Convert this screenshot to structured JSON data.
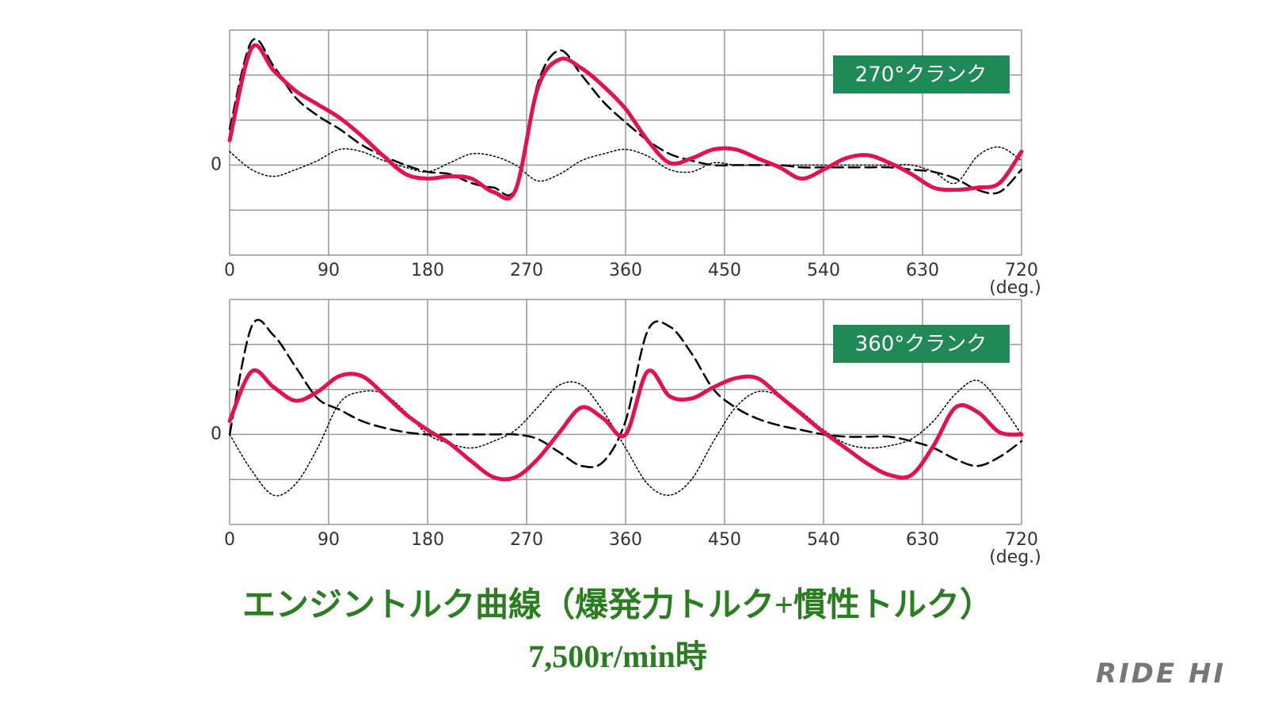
{
  "chart_data": [
    {
      "type": "line",
      "annotation": "270°クランク",
      "x_unit": "(deg.)",
      "xlim": [
        0,
        720
      ],
      "xticks": [
        0,
        90,
        180,
        270,
        360,
        450,
        540,
        630,
        720
      ],
      "ylim": [
        -2,
        3
      ],
      "yticks": [
        0
      ],
      "ygrid": [
        -2,
        -1,
        0,
        1,
        2,
        3
      ],
      "grid": true,
      "x": [
        0,
        20,
        40,
        60,
        80,
        100,
        120,
        140,
        160,
        180,
        200,
        220,
        240,
        260,
        280,
        300,
        320,
        340,
        360,
        380,
        400,
        420,
        440,
        460,
        480,
        500,
        520,
        540,
        560,
        580,
        600,
        620,
        640,
        660,
        680,
        700,
        720
      ],
      "series": [
        {
          "color": "#000000",
          "style": "dashed",
          "line_width": 2.5,
          "values": [
            0.8,
            2.75,
            2.2,
            1.5,
            1.1,
            0.8,
            0.45,
            0.2,
            0.0,
            -0.15,
            -0.2,
            -0.4,
            -0.5,
            -0.5,
            1.8,
            2.55,
            2.0,
            1.4,
            0.95,
            0.55,
            0.25,
            0.1,
            0.0,
            0.0,
            0.0,
            0.0,
            -0.05,
            -0.05,
            -0.05,
            -0.05,
            -0.05,
            -0.1,
            -0.15,
            -0.3,
            -0.55,
            -0.6,
            -0.1
          ]
        },
        {
          "color": "#000000",
          "style": "dotted",
          "line_width": 1.5,
          "values": [
            0.3,
            -0.1,
            -0.25,
            -0.1,
            0.1,
            0.35,
            0.3,
            0.1,
            -0.05,
            -0.15,
            0.05,
            0.25,
            0.2,
            0.0,
            -0.35,
            -0.2,
            0.1,
            0.25,
            0.35,
            0.2,
            -0.1,
            -0.15,
            0.05,
            0.0,
            0.0,
            0.0,
            0.0,
            0.0,
            0.0,
            0.0,
            0.0,
            0.0,
            -0.15,
            -0.4,
            0.2,
            0.4,
            0.1
          ]
        },
        {
          "color": "#e3124f",
          "style": "solid",
          "line_width": 5,
          "values": [
            0.55,
            2.6,
            2.1,
            1.65,
            1.35,
            1.05,
            0.65,
            0.2,
            -0.2,
            -0.3,
            -0.25,
            -0.3,
            -0.6,
            -0.55,
            1.7,
            2.35,
            2.15,
            1.75,
            1.25,
            0.55,
            0.05,
            0.15,
            0.35,
            0.35,
            0.15,
            -0.05,
            -0.3,
            -0.1,
            0.15,
            0.22,
            0.05,
            -0.2,
            -0.5,
            -0.55,
            -0.5,
            -0.4,
            0.3
          ]
        }
      ]
    },
    {
      "type": "line",
      "annotation": "360°クランク",
      "x_unit": "(deg.)",
      "xlim": [
        0,
        720
      ],
      "xticks": [
        0,
        90,
        180,
        270,
        360,
        450,
        540,
        630,
        720
      ],
      "ylim": [
        -2,
        3
      ],
      "yticks": [
        0
      ],
      "ygrid": [
        -2,
        -1,
        0,
        1,
        2,
        3
      ],
      "grid": true,
      "x": [
        0,
        20,
        40,
        60,
        80,
        100,
        120,
        140,
        160,
        180,
        200,
        220,
        240,
        260,
        280,
        300,
        320,
        340,
        360,
        380,
        400,
        420,
        440,
        460,
        480,
        500,
        520,
        540,
        560,
        580,
        600,
        620,
        640,
        660,
        680,
        700,
        720
      ],
      "series": [
        {
          "color": "#000000",
          "style": "dashed",
          "line_width": 2.5,
          "values": [
            0.0,
            2.4,
            2.2,
            1.5,
            0.8,
            0.55,
            0.3,
            0.15,
            0.05,
            0.0,
            0.0,
            0.0,
            0.0,
            0.0,
            -0.1,
            -0.4,
            -0.7,
            -0.6,
            0.3,
            2.3,
            2.4,
            1.8,
            1.0,
            0.6,
            0.35,
            0.2,
            0.1,
            0.0,
            -0.05,
            -0.05,
            -0.05,
            -0.15,
            -0.3,
            -0.55,
            -0.7,
            -0.5,
            -0.15
          ]
        },
        {
          "color": "#000000",
          "style": "dotted",
          "line_width": 1.5,
          "values": [
            0.0,
            -0.8,
            -1.35,
            -1.1,
            -0.3,
            0.7,
            0.95,
            0.9,
            0.5,
            0.0,
            -0.2,
            -0.3,
            -0.15,
            0.1,
            0.6,
            1.1,
            1.1,
            0.5,
            -0.3,
            -1.1,
            -1.35,
            -1.0,
            -0.15,
            0.6,
            0.95,
            0.85,
            0.5,
            0.1,
            -0.2,
            -0.3,
            -0.25,
            -0.1,
            0.3,
            0.9,
            1.2,
            0.7,
            0.0
          ]
        },
        {
          "color": "#e3124f",
          "style": "solid",
          "line_width": 5,
          "values": [
            0.3,
            1.4,
            1.05,
            0.75,
            0.95,
            1.3,
            1.3,
            0.9,
            0.45,
            0.1,
            -0.2,
            -0.6,
            -0.95,
            -0.95,
            -0.55,
            0.05,
            0.6,
            0.35,
            0.0,
            1.4,
            0.85,
            0.8,
            1.05,
            1.25,
            1.25,
            0.85,
            0.45,
            0.05,
            -0.3,
            -0.65,
            -0.9,
            -0.9,
            -0.25,
            0.6,
            0.5,
            0.05,
            0.0
          ]
        }
      ]
    }
  ],
  "caption": {
    "title": "エンジントルク曲線（爆発力トルク+慣性トルク）",
    "subtitle": "7,500r/min時"
  },
  "watermark": "RIDE HI"
}
